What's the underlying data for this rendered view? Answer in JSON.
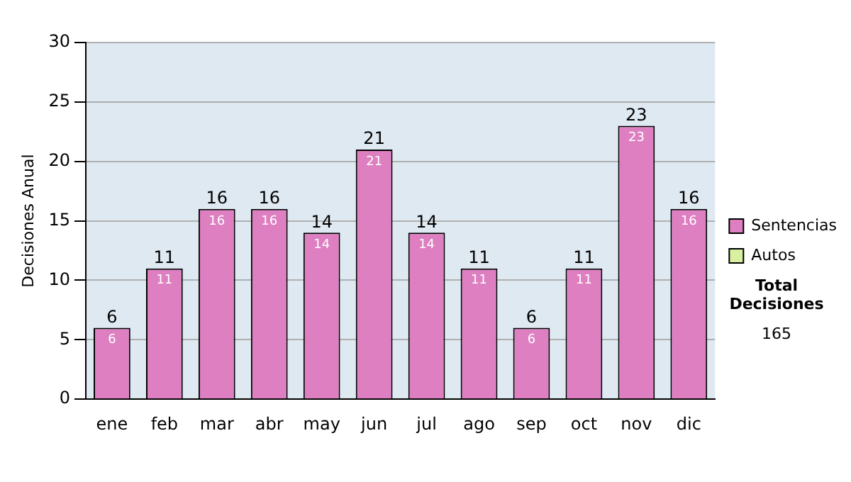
{
  "chart_data": {
    "type": "bar",
    "ylabel": "Decisiones Anual",
    "categories": [
      "ene",
      "feb",
      "mar",
      "abr",
      "may",
      "jun",
      "jul",
      "ago",
      "sep",
      "oct",
      "nov",
      "dic"
    ],
    "series": [
      {
        "name": "Sentencias",
        "color": "#dd7fc0",
        "values": [
          6,
          11,
          16,
          16,
          14,
          21,
          14,
          11,
          6,
          11,
          23,
          16
        ]
      },
      {
        "name": "Autos",
        "color": "#d8f0a0",
        "values": [
          null,
          null,
          null,
          null,
          null,
          null,
          null,
          null,
          null,
          null,
          null,
          null
        ]
      }
    ],
    "stacked": true,
    "totals": [
      "6",
      "11",
      "16",
      "16",
      "14",
      "21",
      "14",
      "11",
      "6",
      "11",
      "23",
      "16"
    ],
    "data_labels": true,
    "ylim": [
      0,
      30
    ],
    "yticks": [
      0,
      5,
      10,
      15,
      20,
      25,
      30
    ],
    "grid": "y",
    "legend": "right",
    "annotations": [
      "Total Decisiones",
      "165"
    ]
  }
}
